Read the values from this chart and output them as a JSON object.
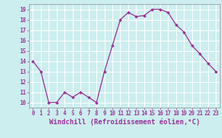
{
  "x": [
    0,
    1,
    2,
    3,
    4,
    5,
    6,
    7,
    8,
    9,
    10,
    11,
    12,
    13,
    14,
    15,
    16,
    17,
    18,
    19,
    20,
    21,
    22,
    23
  ],
  "y": [
    14,
    13,
    10,
    10,
    11,
    10.5,
    11,
    10.5,
    10,
    13,
    15.5,
    18,
    18.7,
    18.3,
    18.4,
    19,
    19,
    18.7,
    17.5,
    16.8,
    15.5,
    14.7,
    13.8,
    13
  ],
  "line_color": "#993399",
  "marker": "D",
  "marker_size": 2,
  "bg_color": "#cceeee",
  "grid_color": "#aadddd",
  "xlabel": "Windchill (Refroidissement éolien,°C)",
  "xlabel_color": "#993399",
  "tick_color": "#993399",
  "ylim": [
    9.5,
    19.5
  ],
  "xlim": [
    -0.5,
    23.5
  ],
  "yticks": [
    10,
    11,
    12,
    13,
    14,
    15,
    16,
    17,
    18,
    19
  ],
  "xticks": [
    0,
    1,
    2,
    3,
    4,
    5,
    6,
    7,
    8,
    9,
    10,
    11,
    12,
    13,
    14,
    15,
    16,
    17,
    18,
    19,
    20,
    21,
    22,
    23
  ],
  "tick_fontsize": 5.5,
  "xlabel_fontsize": 7.0,
  "linewidth": 1.0
}
